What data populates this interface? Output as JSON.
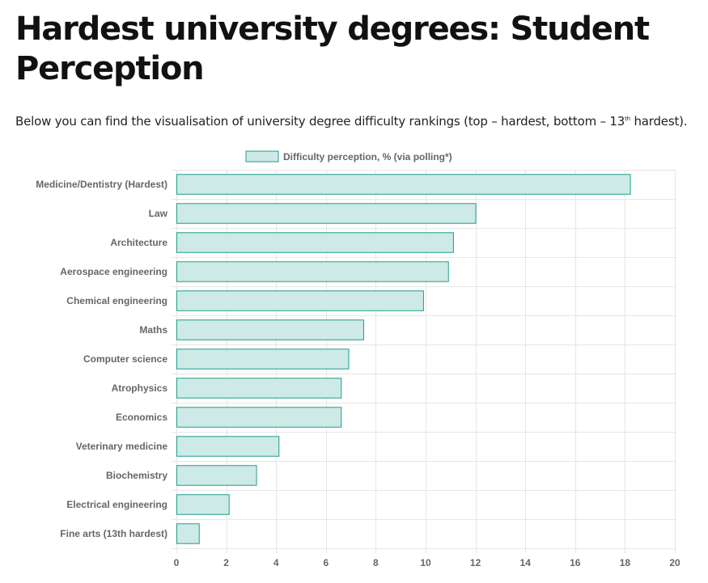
{
  "page": {
    "title": "Hardest university degrees: Student Perception",
    "intro_text": "Below you can find the visualisation of university degree difficulty rankings (top – hardest, bottom – 13",
    "intro_sup": "th",
    "intro_tail": " hardest)."
  },
  "colors": {
    "bar_fill": "#cdeae6",
    "bar_stroke": "#1f9c8c",
    "grid": "#e6e6e6",
    "axis_text": "#666666"
  },
  "chart_data": {
    "type": "bar",
    "orientation": "horizontal",
    "legend": {
      "label": "Difficulty perception, % (via polling*)",
      "position": "top"
    },
    "categories": [
      "Medicine/Dentistry (Hardest)",
      "Law",
      "Architecture",
      "Aerospace engineering",
      "Chemical engineering",
      "Maths",
      "Computer science",
      "Atrophysics",
      "Economics",
      "Veterinary medicine",
      "Biochemistry",
      "Electrical engineering",
      "Fine arts (13th hardest)"
    ],
    "values": [
      18.2,
      12.0,
      11.1,
      10.9,
      9.9,
      7.5,
      6.9,
      6.6,
      6.6,
      4.1,
      3.2,
      2.1,
      0.9
    ],
    "xlim": [
      0,
      20
    ],
    "xticks": [
      0,
      2,
      4,
      6,
      8,
      10,
      12,
      14,
      16,
      18,
      20
    ],
    "grid": true
  }
}
